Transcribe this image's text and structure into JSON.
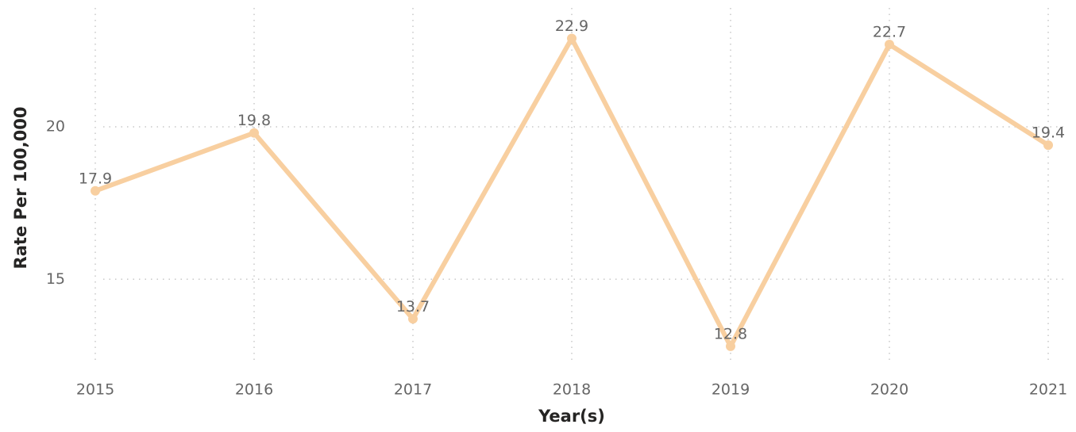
{
  "chart_data": {
    "type": "line",
    "x_label": "Year(s)",
    "y_label": "Rate Per 100,000",
    "categories": [
      "2015",
      "2016",
      "2017",
      "2018",
      "2019",
      "2020",
      "2021"
    ],
    "series": [
      {
        "name": "Rate Per 100,000",
        "color": "#f8cfa0",
        "values": [
          17.9,
          19.8,
          13.7,
          22.9,
          12.8,
          22.7,
          19.4
        ]
      }
    ],
    "ylim": [
      12.2,
      23.9
    ],
    "yticks": [
      15,
      20
    ],
    "grid": true
  }
}
